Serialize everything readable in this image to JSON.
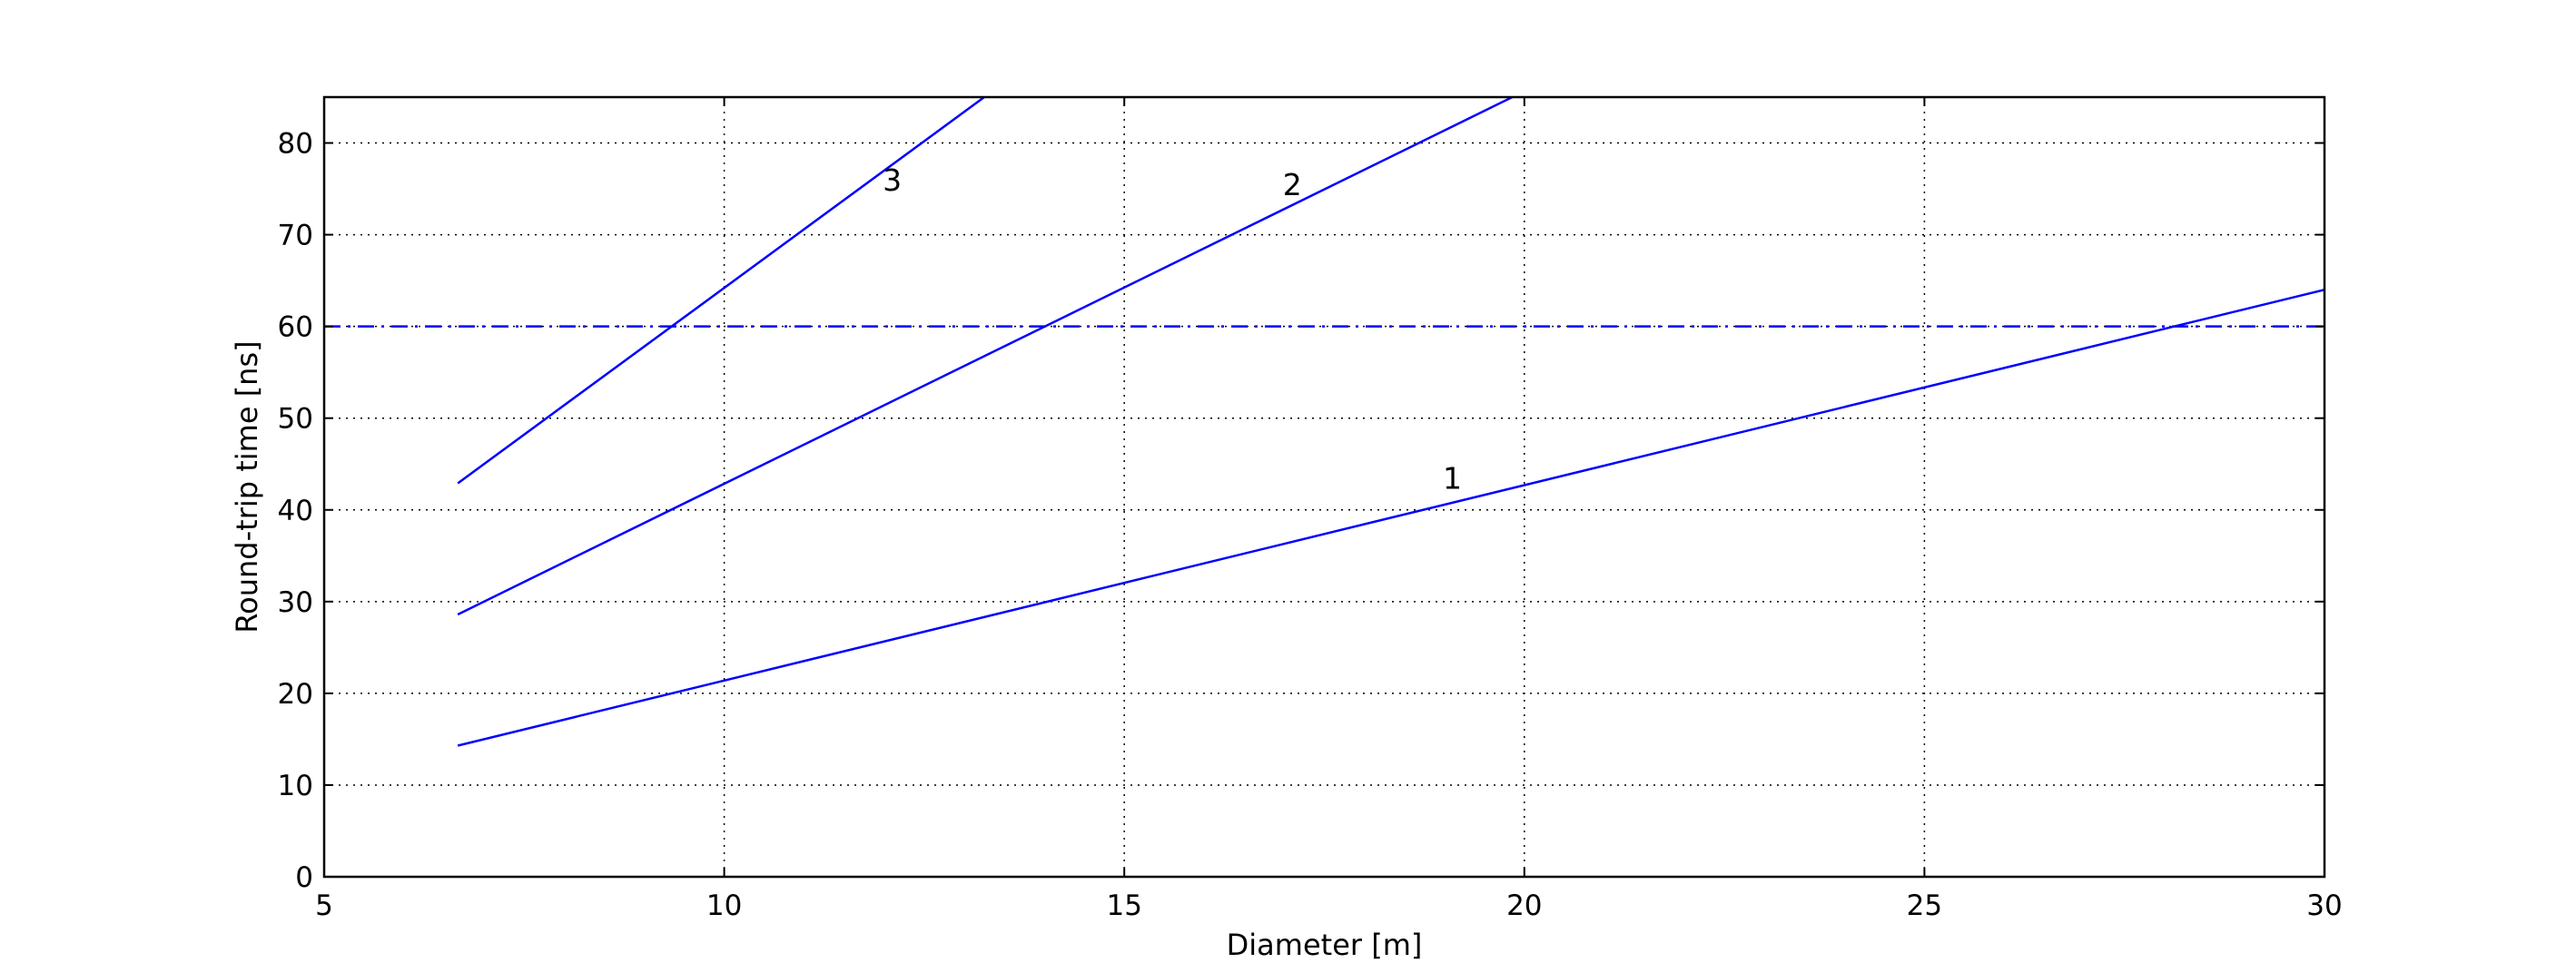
{
  "chart_data": {
    "type": "line",
    "xlabel": "Diameter [m]",
    "ylabel": "Round-trip time [ns]",
    "xlim": [
      5,
      30
    ],
    "ylim": [
      0,
      85
    ],
    "xticks": [
      5,
      10,
      15,
      20,
      25,
      30
    ],
    "yticks": [
      0,
      10,
      20,
      30,
      40,
      50,
      60,
      70,
      80
    ],
    "grid": true,
    "grid_style": "dotted",
    "series": [
      {
        "x": [
          6.67,
          30
        ],
        "y": [
          14.3,
          64.0
        ],
        "color": "#0000ff",
        "style": "solid",
        "label_text": "1",
        "label_pos": [
          19.1,
          43.5
        ]
      },
      {
        "x": [
          6.67,
          19.85
        ],
        "y": [
          28.6,
          85.0
        ],
        "color": "#0000ff",
        "style": "solid",
        "label_text": "2",
        "label_pos": [
          17.1,
          75.5
        ]
      },
      {
        "x": [
          6.67,
          13.25
        ],
        "y": [
          42.9,
          85.0
        ],
        "color": "#0000ff",
        "style": "solid",
        "label_text": "3",
        "label_pos": [
          12.1,
          76.0
        ]
      }
    ],
    "reference_lines": [
      {
        "y": 60,
        "color": "#0000ff",
        "style": "dash-dot"
      }
    ]
  }
}
